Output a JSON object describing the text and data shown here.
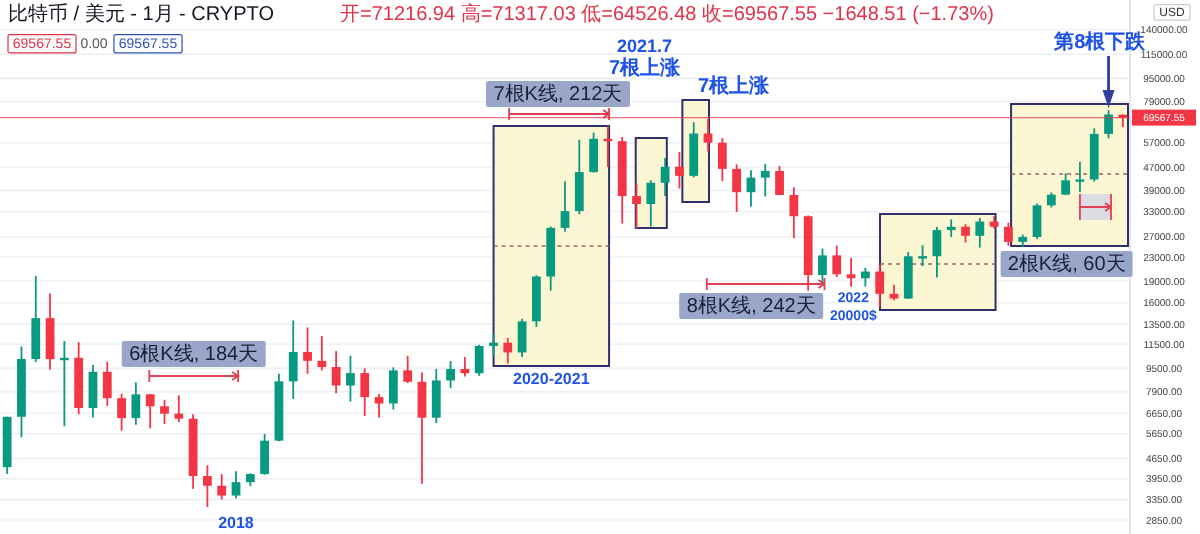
{
  "chart_data": {
    "type": "candlestick",
    "title": "比特币 / 美元 - 1月 - CRYPTO",
    "subtitle": "开=71216.94 高=71317.03 低=64526.48 收=69567.55 −1648.51 (−1.73%)",
    "categories": [
      null,
      null,
      null,
      null,
      null,
      null,
      null,
      null,
      null,
      null,
      null,
      null,
      null,
      null,
      null,
      null,
      null,
      null,
      null,
      null,
      null,
      null,
      null,
      null,
      null,
      null,
      null,
      null,
      null,
      null,
      null,
      null,
      null,
      null,
      null,
      null,
      null,
      null,
      null,
      null,
      null,
      null,
      null,
      null,
      null,
      null,
      null,
      null,
      null,
      null,
      null,
      null,
      null,
      null,
      null,
      null,
      null,
      null,
      null,
      null,
      null,
      null,
      null,
      null,
      null,
      null,
      null,
      null,
      null,
      null,
      null,
      null,
      null,
      null,
      null,
      null,
      null,
      null,
      null
    ],
    "ohlc": [
      [
        4338,
        6470,
        4110,
        6468
      ],
      [
        6468,
        11300,
        5500,
        10233
      ],
      [
        10233,
        19800,
        10000,
        14157
      ],
      [
        14157,
        17200,
        9400,
        10222
      ],
      [
        10222,
        11800,
        6000,
        10330
      ],
      [
        10330,
        11700,
        6600,
        6935
      ],
      [
        6935,
        9750,
        6430,
        9245
      ],
      [
        9245,
        10000,
        7050,
        7500
      ],
      [
        7500,
        7770,
        5790,
        6400
      ],
      [
        6400,
        8500,
        6070,
        7730
      ],
      [
        7730,
        7760,
        5900,
        7030
      ],
      [
        7030,
        7400,
        6100,
        6630
      ],
      [
        6630,
        7680,
        6200,
        6370
      ],
      [
        6370,
        6600,
        3650,
        4040
      ],
      [
        4040,
        4400,
        3160,
        3740
      ],
      [
        3740,
        4100,
        3350,
        3460
      ],
      [
        3460,
        4200,
        3390,
        3850
      ],
      [
        3850,
        4130,
        3730,
        4105
      ],
      [
        4105,
        5640,
        4080,
        5350
      ],
      [
        5350,
        9100,
        5330,
        8570
      ],
      [
        8570,
        13900,
        7450,
        10820
      ],
      [
        10820,
        13150,
        9100,
        10085
      ],
      [
        10085,
        12300,
        9350,
        9600
      ],
      [
        9600,
        10900,
        7800,
        8290
      ],
      [
        8290,
        10500,
        7300,
        9150
      ],
      [
        9150,
        9500,
        6500,
        7560
      ],
      [
        7560,
        7750,
        6430,
        7190
      ],
      [
        7190,
        9580,
        6850,
        9350
      ],
      [
        9350,
        10500,
        8450,
        8540
      ],
      [
        8540,
        9190,
        3800,
        6420
      ],
      [
        6420,
        9460,
        6150,
        8630
      ],
      [
        8630,
        10070,
        8120,
        9450
      ],
      [
        9450,
        10400,
        8900,
        9140
      ],
      [
        9140,
        11450,
        8960,
        11350
      ],
      [
        11350,
        12480,
        10500,
        11650
      ],
      [
        11650,
        12090,
        9880,
        10780
      ],
      [
        10780,
        14100,
        10400,
        13800
      ],
      [
        13800,
        19900,
        13200,
        19700
      ],
      [
        19700,
        29300,
        17600,
        28990
      ],
      [
        28990,
        41950,
        28130,
        33110
      ],
      [
        33110,
        58350,
        32300,
        45140
      ],
      [
        45140,
        61800,
        45000,
        58790
      ],
      [
        58790,
        64900,
        47000,
        57700
      ],
      [
        57700,
        59600,
        30000,
        37300
      ],
      [
        37300,
        41300,
        28800,
        35040
      ],
      [
        35040,
        42300,
        29300,
        41460
      ],
      [
        41460,
        50500,
        37300,
        47100
      ],
      [
        47100,
        52900,
        39600,
        43820
      ],
      [
        43820,
        67000,
        43300,
        61300
      ],
      [
        61300,
        69000,
        53300,
        57000
      ],
      [
        57000,
        59100,
        42000,
        46300
      ],
      [
        46300,
        47990,
        32900,
        38480
      ],
      [
        38480,
        45800,
        34300,
        43190
      ],
      [
        43190,
        48200,
        37200,
        45540
      ],
      [
        45540,
        47400,
        37600,
        37640
      ],
      [
        37640,
        40000,
        26700,
        31790
      ],
      [
        31790,
        31990,
        17600,
        19930
      ],
      [
        19930,
        24600,
        18800,
        23300
      ],
      [
        23300,
        25200,
        19600,
        20050
      ],
      [
        20050,
        22800,
        18150,
        19430
      ],
      [
        19430,
        21100,
        18200,
        20490
      ],
      [
        20490,
        21500,
        15500,
        17170
      ],
      [
        17170,
        18400,
        16300,
        16540
      ],
      [
        16540,
        23960,
        16500,
        23130
      ],
      [
        23130,
        25250,
        21400,
        23150
      ],
      [
        23150,
        29200,
        19550,
        28480
      ],
      [
        28480,
        31000,
        26950,
        29250
      ],
      [
        29250,
        29850,
        25800,
        27220
      ],
      [
        27220,
        31400,
        24800,
        30480
      ],
      [
        30480,
        31800,
        28860,
        29230
      ],
      [
        29230,
        30200,
        25150,
        25940
      ],
      [
        25940,
        27500,
        24900,
        26970
      ],
      [
        26970,
        35200,
        26550,
        34660
      ],
      [
        34660,
        38400,
        34100,
        37720
      ],
      [
        37720,
        44700,
        37600,
        42280
      ],
      [
        42280,
        48970,
        38500,
        42580
      ],
      [
        42580,
        63900,
        41880,
        61130
      ],
      [
        61130,
        73800,
        59000,
        71290
      ],
      [
        71216.94,
        71317.03,
        64526.48,
        69567.55
      ]
    ],
    "colors": [
      "#089981",
      "#089981",
      "#089981",
      "#f23645",
      "#089981",
      "#f23645",
      "#089981",
      "#f23645",
      "#f23645",
      "#089981",
      "#f23645",
      "#f23645",
      "#f23645",
      "#f23645",
      "#f23645",
      "#f23645",
      "#089981",
      "#089981",
      "#089981",
      "#089981",
      "#089981",
      "#f23645",
      "#f23645",
      "#f23645",
      "#089981",
      "#f23645",
      "#f23645",
      "#089981",
      "#f23645",
      "#f23645",
      "#089981",
      "#089981",
      "#f23645",
      "#089981",
      "#089981",
      "#f23645",
      "#089981",
      "#089981",
      "#089981",
      "#089981",
      "#089981",
      "#089981",
      "#f23645",
      "#f23645",
      "#f23645",
      "#089981",
      "#089981",
      "#f23645",
      "#089981",
      "#f23645",
      "#f23645",
      "#f23645",
      "#089981",
      "#089981",
      "#f23645",
      "#f23645",
      "#f23645",
      "#089981",
      "#f23645",
      "#f23645",
      "#089981",
      "#f23645",
      "#f23645",
      "#089981",
      "#089981",
      "#089981",
      "#089981",
      "#f23645",
      "#089981",
      "#f23645",
      "#f23645",
      "#089981",
      "#089981",
      "#089981",
      "#089981",
      "#089981",
      "#089981",
      "#089981",
      "#f23645"
    ],
    "log": true,
    "ylim": [
      2550,
      177000
    ],
    "yticks": [
      {
        "value": 2850,
        "label": "2850.00"
      },
      {
        "value": 3350,
        "label": "3350.00"
      },
      {
        "value": 3950,
        "label": "3950.00"
      },
      {
        "value": 4650,
        "label": "4650.00"
      },
      {
        "value": 5650,
        "label": "5650.00"
      },
      {
        "value": 6650,
        "label": "6650.00"
      },
      {
        "value": 7900,
        "label": "7900.00"
      },
      {
        "value": 9500,
        "label": "9500.00"
      },
      {
        "value": 11500,
        "label": "11500.00"
      },
      {
        "value": 13500,
        "label": "13500.00"
      },
      {
        "value": 16000,
        "label": "16000.00"
      },
      {
        "value": 19000,
        "label": "19000.00"
      },
      {
        "value": 23000,
        "label": "23000.00"
      },
      {
        "value": 27000,
        "label": "27000.00"
      },
      {
        "value": 33000,
        "label": "33000.00"
      },
      {
        "value": 39000,
        "label": "39000.00"
      },
      {
        "value": 47000,
        "label": "47000.00"
      },
      {
        "value": 57000,
        "label": "57000.00"
      },
      {
        "value": 79000,
        "label": "79000.00"
      },
      {
        "value": 95000,
        "label": "95000.00"
      },
      {
        "value": 115000,
        "label": "115000.00"
      },
      {
        "value": 140000,
        "label": "140000.00"
      }
    ],
    "grid": "y",
    "tick_labels": "y",
    "ref_lines": [
      {
        "axis": "y",
        "value": 69567.55,
        "label": "69567.55",
        "color": "#f23645"
      }
    ],
    "annotations": [
      "69567.55",
      "0.00",
      "69567.55",
      "USD",
      "6根K线, 184天",
      "2018",
      "7根K线, 212天",
      "2020-2021",
      "2021.7",
      "7根上涨",
      "7根上涨",
      "8根K线, 242天",
      "2022",
      "20000$",
      "2根K线, 60天",
      "第8根下跌"
    ]
  }
}
